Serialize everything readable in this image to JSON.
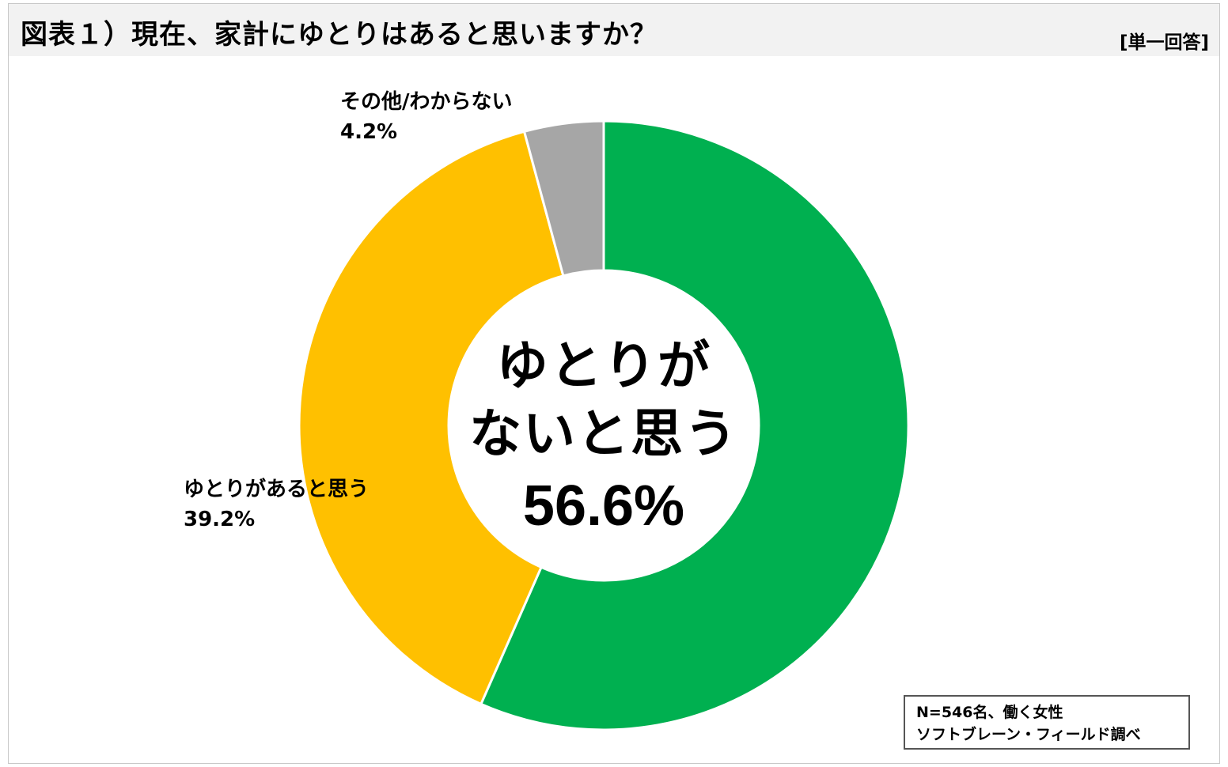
{
  "header": {
    "title": "図表１）現在、家計にゆとりはあると思いますか？",
    "answer_type": "[単一回答]"
  },
  "chart_data": {
    "type": "pie",
    "donut": true,
    "series": [
      {
        "name": "ゆとりがないと思う",
        "value": 56.6,
        "color": "#00b050"
      },
      {
        "name": "ゆとりがあると思う",
        "value": 39.2,
        "color": "#ffc000"
      },
      {
        "name": "その他/わからない",
        "value": 4.2,
        "color": "#a6a6a6"
      }
    ],
    "labels": [
      {
        "name": "その他/わからない",
        "value_text": "4.2%"
      },
      {
        "name": "ゆとりがあると思う",
        "value_text": "39.2%"
      }
    ],
    "center": {
      "line1": "ゆとりが",
      "line2": "ないと思う",
      "value_text": "56.6%"
    }
  },
  "note": {
    "line1": "N=546名、働く女性",
    "line2": "ソフトブレーン・フィールド調べ"
  }
}
